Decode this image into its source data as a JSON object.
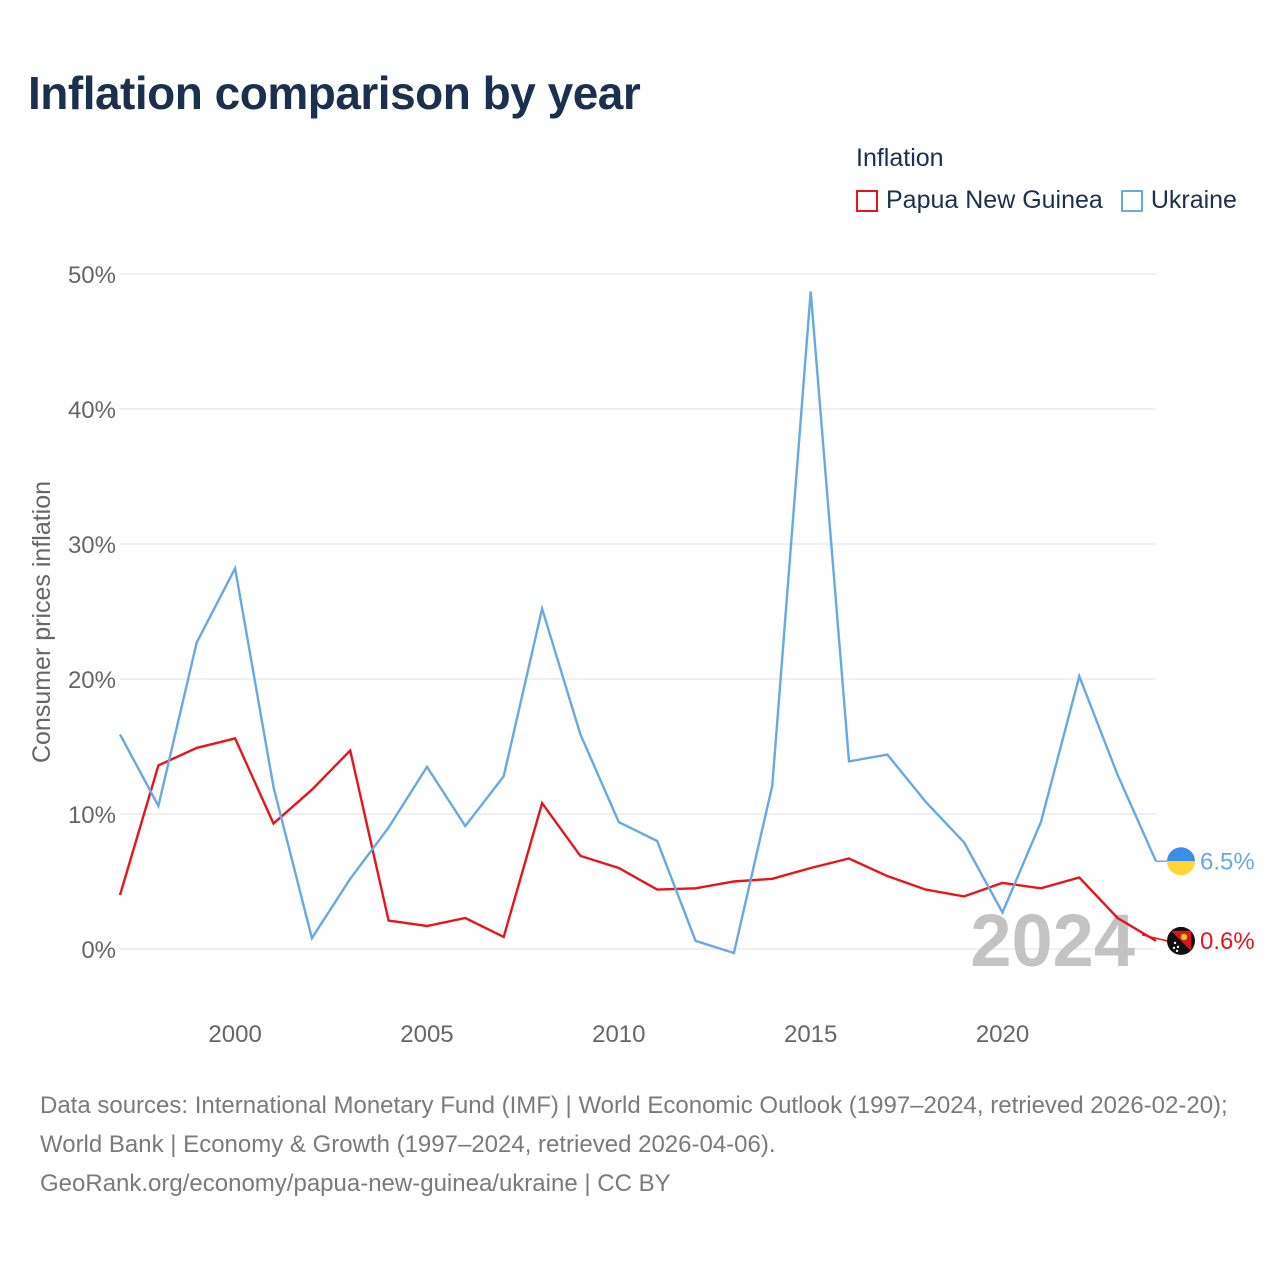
{
  "title": "Inflation comparison by year",
  "legend": {
    "heading": "Inflation",
    "items": [
      {
        "label": "Papua New Guinea",
        "color": "#e8141c"
      },
      {
        "label": "Ukraine",
        "color": "#67a9e2"
      }
    ]
  },
  "chart_data": {
    "type": "line",
    "title": "Inflation comparison by year",
    "ylabel": "Consumer prices inflation",
    "xlabel": "",
    "ylim": [
      -5,
      50
    ],
    "xlim": [
      1997,
      2024
    ],
    "yticks": [
      0,
      10,
      20,
      30,
      40,
      50
    ],
    "ytick_labels": [
      "0%",
      "10%",
      "20%",
      "30%",
      "40%",
      "50%"
    ],
    "xticks": [
      2000,
      2005,
      2010,
      2015,
      2020
    ],
    "xtick_labels": [
      "2000",
      "2005",
      "2010",
      "2015",
      "2020"
    ],
    "grid": true,
    "legend_position": "top-right",
    "x": [
      1997,
      1998,
      1999,
      2000,
      2001,
      2002,
      2003,
      2004,
      2005,
      2006,
      2007,
      2008,
      2009,
      2010,
      2011,
      2012,
      2013,
      2014,
      2015,
      2016,
      2017,
      2018,
      2019,
      2020,
      2021,
      2022,
      2023,
      2024
    ],
    "series": [
      {
        "name": "Papua New Guinea",
        "color": "#e8141c",
        "values": [
          4.0,
          13.6,
          14.9,
          15.6,
          9.3,
          11.8,
          14.7,
          2.1,
          1.7,
          2.3,
          0.9,
          10.8,
          6.9,
          6.0,
          4.4,
          4.5,
          5.0,
          5.2,
          6.0,
          6.7,
          5.4,
          4.4,
          3.9,
          4.9,
          4.5,
          5.3,
          2.3,
          0.6
        ],
        "end_label": "0.6%"
      },
      {
        "name": "Ukraine",
        "color": "#67a9e2",
        "values": [
          15.9,
          10.6,
          22.7,
          28.2,
          12.0,
          0.8,
          5.2,
          9.0,
          13.5,
          9.1,
          12.8,
          25.2,
          15.9,
          9.4,
          8.0,
          0.6,
          -0.3,
          12.1,
          48.7,
          13.9,
          14.4,
          10.9,
          7.9,
          2.7,
          9.4,
          20.2,
          12.9,
          6.5
        ],
        "end_label": "6.5%"
      }
    ],
    "year_watermark": "2024"
  },
  "footer": {
    "sources": "Data sources: International Monetary Fund (IMF) | World Economic Outlook (1997–2024, retrieved 2026-02-20); World Bank | Economy & Growth (1997–2024, retrieved 2026-04-06).",
    "credit": "GeoRank.org/economy/papua-new-guinea/ukraine | CC BY"
  }
}
